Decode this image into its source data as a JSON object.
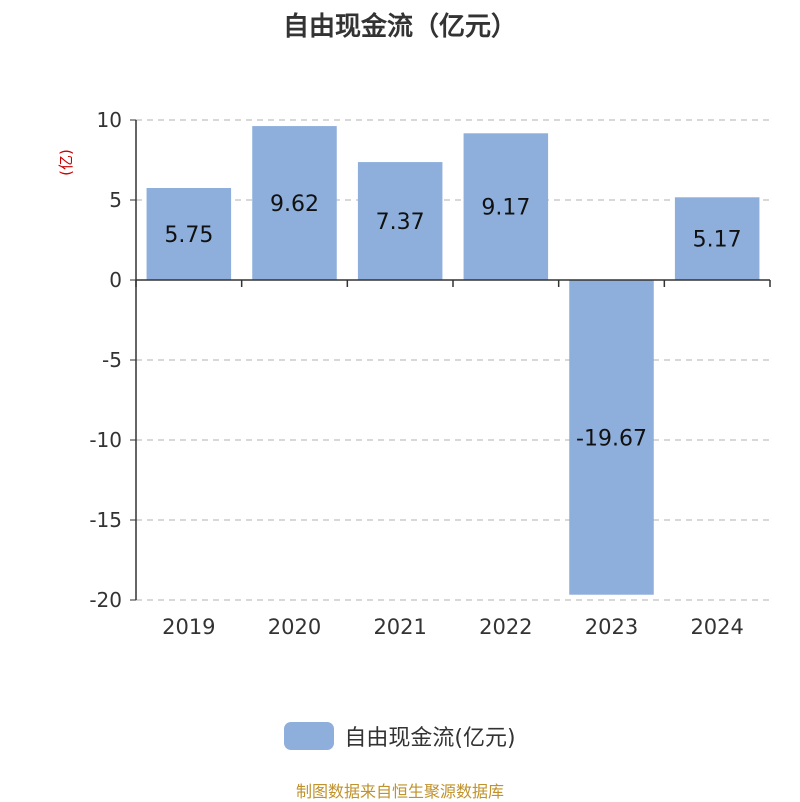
{
  "title": "自由现金流（亿元）",
  "y_unit": "(亿)",
  "legend_label": "自由现金流(亿元)",
  "source_note": "制图数据来自恒生聚源数据库",
  "colors": {
    "bar": "#8eafdb",
    "source_note": "#c0922b",
    "grid": "#cccccc",
    "axis": "#333333"
  },
  "chart_data": {
    "type": "bar",
    "title": "自由现金流（亿元）",
    "categories": [
      "2019",
      "2020",
      "2021",
      "2022",
      "2023",
      "2024"
    ],
    "series": [
      {
        "name": "自由现金流(亿元)",
        "values": [
          5.75,
          9.62,
          7.37,
          9.17,
          -19.67,
          5.17
        ]
      }
    ],
    "ylabel": "(亿)",
    "ylim": [
      -20,
      10
    ],
    "yticks": [
      10,
      5,
      0,
      -5,
      -10,
      -15,
      -20
    ],
    "grid": true,
    "legend_position": "bottom"
  }
}
